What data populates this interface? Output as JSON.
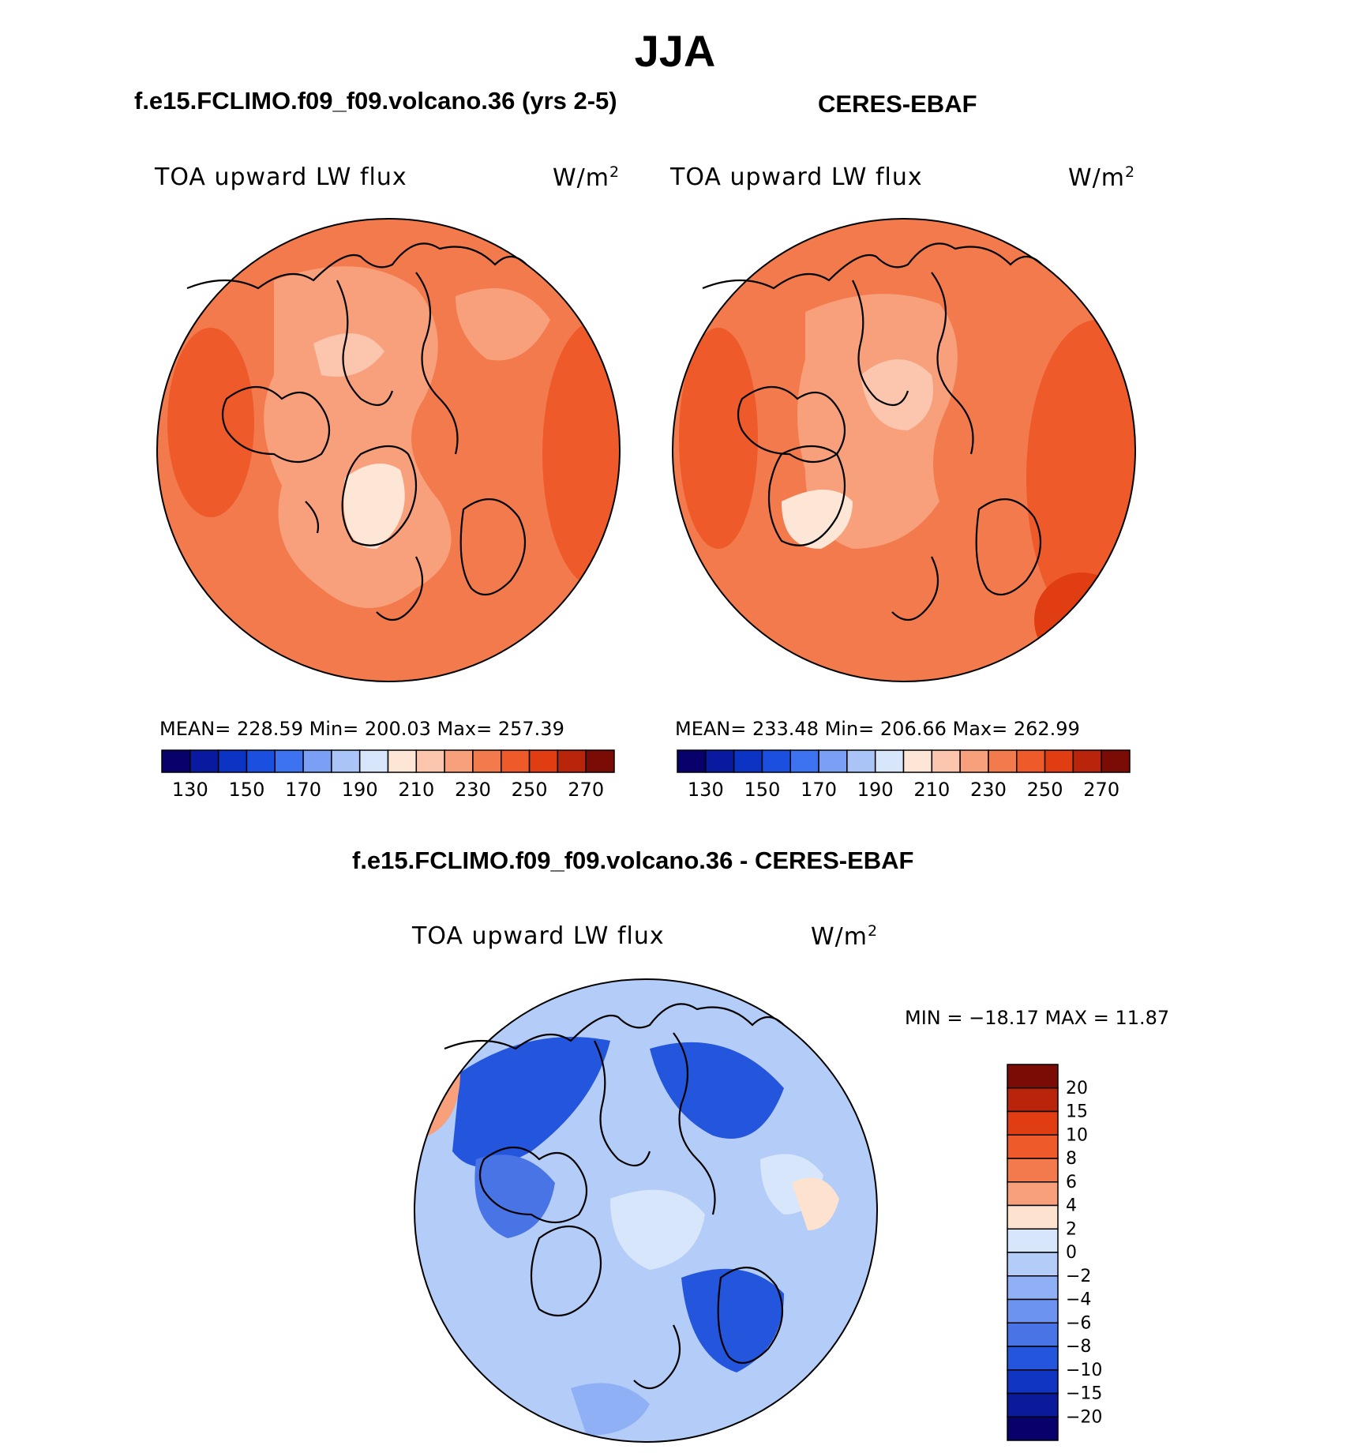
{
  "title": "JJA",
  "panels": [
    {
      "subtitle": "f.e15.FCLIMO.f09_f09.volcano.36 (yrs 2-5)",
      "variable": "TOA upward LW flux",
      "units_base": "W/m",
      "units_exp": "2",
      "stats": "MEAN=  228.59   Min=  200.03   Max=  257.39"
    },
    {
      "subtitle": "CERES-EBAF",
      "variable": "TOA upward LW flux",
      "units_base": "W/m",
      "units_exp": "2",
      "stats": "MEAN=  233.48   Min=  206.66   Max=  262.99"
    }
  ],
  "abs_colorbar": {
    "ticks": [
      "130",
      "150",
      "170",
      "190",
      "210",
      "230",
      "250",
      "270"
    ],
    "colors": [
      "#08006b",
      "#0a1aa0",
      "#0b33c4",
      "#1a4fe0",
      "#3d72f0",
      "#7a9ff4",
      "#abc4f7",
      "#d8e6fb",
      "#fde6d6",
      "#fbc6ad",
      "#f8a07c",
      "#f37a4d",
      "#ee5a2a",
      "#e03e12",
      "#b8250a",
      "#7a0b05"
    ]
  },
  "diff_panel": {
    "subtitle": "f.e15.FCLIMO.f09_f09.volcano.36 - CERES-EBAF",
    "variable": "TOA upward LW flux",
    "units_base": "W/m",
    "units_exp": "2",
    "minmax": "MIN  =  −18.17  MAX  =    11.87"
  },
  "diff_colorbar": {
    "labels": [
      "20",
      "15",
      "10",
      "8",
      "6",
      "4",
      "2",
      "0",
      "−2",
      "−4",
      "−6",
      "−8",
      "−10",
      "−15",
      "−20"
    ],
    "colors": [
      "#7a0b05",
      "#b8250a",
      "#e03e12",
      "#ee5a2a",
      "#f37a4d",
      "#f8a07c",
      "#fde2d0",
      "#d8e6fb",
      "#b4ccf8",
      "#8fb0f4",
      "#6b93ef",
      "#4874e6",
      "#2456dd",
      "#0f35c2",
      "#0a1a9a",
      "#08006b"
    ]
  }
}
